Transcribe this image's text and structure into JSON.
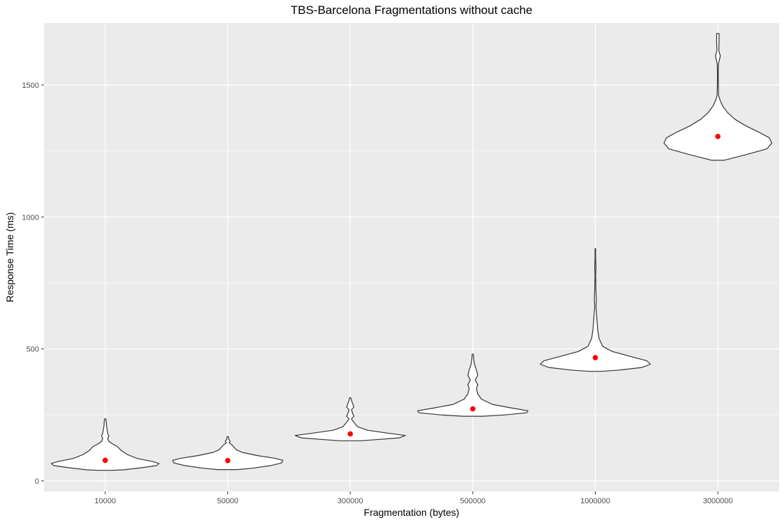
{
  "chart_data": {
    "type": "violin",
    "title": "TBS-Barcelona Fragmentations without cache",
    "xlabel": "Fragmentation (bytes)",
    "ylabel": "Response Time (ms)",
    "ylim": [
      -40,
      1735
    ],
    "yticks": [
      0,
      500,
      1000,
      1500
    ],
    "grid": true,
    "legend": "none",
    "categories": [
      "10000",
      "50000",
      "300000",
      "500000",
      "1000000",
      "3000000"
    ],
    "means": [
      78,
      77,
      178,
      273,
      467,
      1305
    ],
    "violins": [
      {
        "category": "10000",
        "profile": [
          [
            40,
            0.05
          ],
          [
            42,
            0.15
          ],
          [
            50,
            0.3
          ],
          [
            58,
            0.42
          ],
          [
            66,
            0.44
          ],
          [
            74,
            0.38
          ],
          [
            85,
            0.26
          ],
          [
            100,
            0.18
          ],
          [
            115,
            0.13
          ],
          [
            130,
            0.1
          ],
          [
            140,
            0.06
          ],
          [
            150,
            0.03
          ],
          [
            160,
            0.02
          ],
          [
            170,
            0.03
          ],
          [
            180,
            0.02
          ],
          [
            195,
            0.015
          ],
          [
            210,
            0.01
          ],
          [
            225,
            0.008
          ],
          [
            235,
            0.005
          ]
        ]
      },
      {
        "category": "50000",
        "profile": [
          [
            43,
            0.08
          ],
          [
            48,
            0.2
          ],
          [
            58,
            0.35
          ],
          [
            68,
            0.44
          ],
          [
            78,
            0.45
          ],
          [
            86,
            0.38
          ],
          [
            96,
            0.24
          ],
          [
            108,
            0.12
          ],
          [
            118,
            0.07
          ],
          [
            128,
            0.05
          ],
          [
            138,
            0.03
          ],
          [
            145,
            0.01
          ],
          [
            150,
            0.02
          ],
          [
            158,
            0.008
          ],
          [
            168,
            0.005
          ]
        ]
      },
      {
        "category": "300000",
        "profile": [
          [
            152,
            0.08
          ],
          [
            156,
            0.2
          ],
          [
            163,
            0.4
          ],
          [
            172,
            0.45
          ],
          [
            180,
            0.32
          ],
          [
            192,
            0.14
          ],
          [
            205,
            0.06
          ],
          [
            222,
            0.03
          ],
          [
            235,
            0.01
          ],
          [
            245,
            0.03
          ],
          [
            255,
            0.02
          ],
          [
            270,
            0.01
          ],
          [
            280,
            0.03
          ],
          [
            292,
            0.02
          ],
          [
            305,
            0.01
          ],
          [
            315,
            0.005
          ]
        ]
      },
      {
        "category": "500000",
        "profile": [
          [
            245,
            0.08
          ],
          [
            250,
            0.26
          ],
          [
            258,
            0.44
          ],
          [
            266,
            0.45
          ],
          [
            276,
            0.32
          ],
          [
            290,
            0.16
          ],
          [
            310,
            0.07
          ],
          [
            330,
            0.04
          ],
          [
            350,
            0.03
          ],
          [
            365,
            0.04
          ],
          [
            382,
            0.02
          ],
          [
            400,
            0.04
          ],
          [
            420,
            0.03
          ],
          [
            440,
            0.015
          ],
          [
            460,
            0.008
          ],
          [
            480,
            0.005
          ]
        ]
      },
      {
        "category": "1000000",
        "profile": [
          [
            415,
            0.05
          ],
          [
            420,
            0.2
          ],
          [
            430,
            0.38
          ],
          [
            442,
            0.45
          ],
          [
            455,
            0.42
          ],
          [
            470,
            0.3
          ],
          [
            490,
            0.14
          ],
          [
            510,
            0.06
          ],
          [
            540,
            0.03
          ],
          [
            570,
            0.02
          ],
          [
            600,
            0.015
          ],
          [
            630,
            0.01
          ],
          [
            660,
            0.005
          ],
          [
            690,
            0.008
          ],
          [
            720,
            0.005
          ],
          [
            750,
            0.004
          ],
          [
            780,
            0.002
          ],
          [
            810,
            0.005
          ],
          [
            840,
            0.002
          ],
          [
            880,
            0.002
          ]
        ]
      },
      {
        "category": "3000000",
        "profile": [
          [
            1215,
            0.05
          ],
          [
            1235,
            0.22
          ],
          [
            1258,
            0.4
          ],
          [
            1280,
            0.44
          ],
          [
            1300,
            0.42
          ],
          [
            1320,
            0.34
          ],
          [
            1345,
            0.23
          ],
          [
            1370,
            0.14
          ],
          [
            1395,
            0.08
          ],
          [
            1420,
            0.04
          ],
          [
            1440,
            0.02
          ],
          [
            1460,
            0.006
          ],
          [
            1500,
            0.004
          ],
          [
            1550,
            0.003
          ],
          [
            1580,
            0.005
          ],
          [
            1610,
            0.02
          ],
          [
            1630,
            0.008
          ],
          [
            1665,
            0.01
          ],
          [
            1695,
            0.01
          ]
        ]
      }
    ],
    "colors": {
      "panel": "#ebebeb",
      "grid": "#ffffff",
      "violin_fill": "#ffffff",
      "violin_stroke": "#333333",
      "mean_point": "#ff0000",
      "text": "#000000",
      "tick_text": "#4d4d4d",
      "tick_mark": "#333333"
    }
  }
}
